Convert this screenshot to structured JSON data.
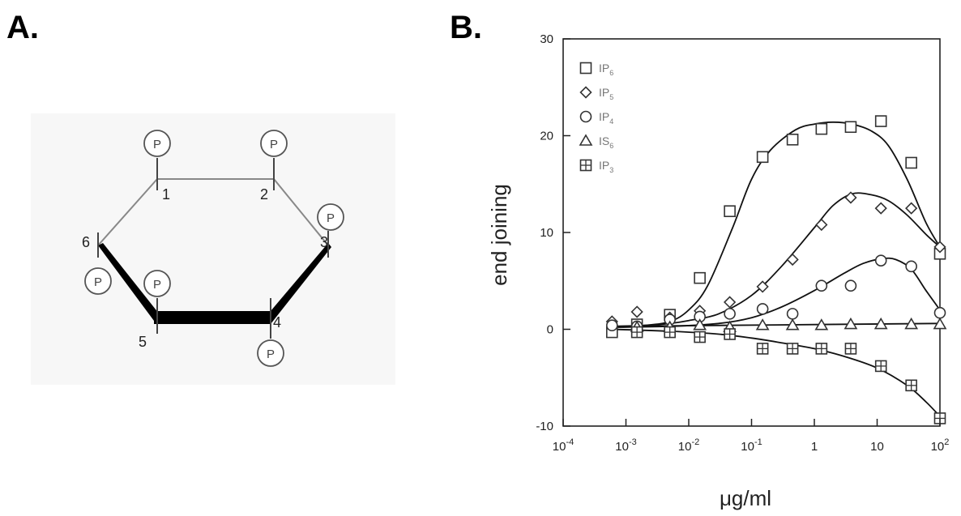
{
  "panels": {
    "a_label": "A.",
    "b_label": "B."
  },
  "diagram": {
    "phosphate_label": "P",
    "positions": [
      "1",
      "2",
      "3",
      "4",
      "5",
      "6"
    ]
  },
  "chart_data": {
    "type": "scatter",
    "xscale": "log",
    "xlim": [
      0.0001,
      100
    ],
    "ylim": [
      -10,
      30
    ],
    "xlabel": "μg/ml",
    "ylabel": "end joining",
    "xticks": [
      0.0001,
      0.001,
      0.01,
      0.1,
      1,
      10,
      100
    ],
    "xtick_labels": [
      {
        "base": "10",
        "exp": "-4"
      },
      {
        "base": "10",
        "exp": "-3"
      },
      {
        "base": "10",
        "exp": "-2"
      },
      {
        "base": "10",
        "exp": "-1"
      },
      {
        "base": "1",
        "exp": ""
      },
      {
        "base": "10",
        "exp": ""
      },
      {
        "base": "10",
        "exp": "2"
      }
    ],
    "yticks": [
      -10,
      0,
      10,
      20,
      30
    ],
    "ytick_labels": [
      "-10",
      "0",
      "10",
      "20",
      "30"
    ],
    "legend_position": "top-left",
    "series": [
      {
        "name": "IP6",
        "name_base": "IP",
        "name_sub": "6",
        "marker": "square",
        "x": [
          0.0006,
          0.0015,
          0.005,
          0.015,
          0.045,
          0.15,
          0.45,
          1.3,
          3.8,
          11.5,
          35,
          100
        ],
        "y": [
          -0.3,
          0.5,
          1.5,
          5.3,
          12.2,
          17.8,
          19.6,
          20.7,
          20.9,
          21.5,
          17.2,
          7.8
        ],
        "curve_x": [
          0.0006,
          0.002,
          0.005,
          0.01,
          0.02,
          0.05,
          0.1,
          0.2,
          0.5,
          1,
          2,
          4,
          8,
          15,
          30,
          60,
          100
        ],
        "curve_y": [
          0.2,
          0.4,
          0.8,
          2,
          4.5,
          10.5,
          15.5,
          18.5,
          20.6,
          21.2,
          21.4,
          21.2,
          20.5,
          19,
          15.5,
          11,
          8.5
        ]
      },
      {
        "name": "IP5",
        "name_base": "IP",
        "name_sub": "5",
        "marker": "diamond",
        "x": [
          0.0006,
          0.0015,
          0.005,
          0.015,
          0.045,
          0.15,
          0.45,
          1.3,
          3.8,
          11.5,
          35,
          100
        ],
        "y": [
          0.8,
          1.8,
          1.2,
          1.9,
          2.8,
          4.4,
          7.2,
          10.8,
          13.6,
          12.5,
          12.5,
          8.5
        ],
        "curve_x": [
          0.0006,
          0.002,
          0.005,
          0.01,
          0.03,
          0.1,
          0.3,
          1,
          2,
          4,
          8,
          15,
          30,
          60,
          100
        ],
        "curve_y": [
          0.3,
          0.4,
          0.6,
          0.9,
          1.6,
          3.5,
          6.5,
          10.5,
          12.8,
          14,
          13.9,
          13.3,
          11.8,
          9.8,
          8.5
        ]
      },
      {
        "name": "IP4",
        "name_base": "IP",
        "name_sub": "4",
        "marker": "circle",
        "x": [
          0.0006,
          0.0015,
          0.005,
          0.015,
          0.045,
          0.15,
          0.45,
          1.3,
          3.8,
          11.5,
          35,
          100
        ],
        "y": [
          0.4,
          0.3,
          1.0,
          1.3,
          1.6,
          2.1,
          1.6,
          4.5,
          4.5,
          7.1,
          6.5,
          1.7
        ],
        "curve_x": [
          0.0006,
          0.005,
          0.03,
          0.1,
          0.3,
          1,
          3,
          6,
          12,
          20,
          35,
          60,
          100
        ],
        "curve_y": [
          0.2,
          0.3,
          0.6,
          1.2,
          2.3,
          4,
          5.8,
          6.8,
          7.3,
          7.2,
          6.2,
          4,
          2
        ]
      },
      {
        "name": "IS6",
        "name_base": "IS",
        "name_sub": "6",
        "marker": "triangle",
        "x": [
          0.0015,
          0.005,
          0.015,
          0.045,
          0.15,
          0.45,
          1.3,
          3.8,
          11.5,
          35,
          100
        ],
        "y": [
          0.2,
          0.2,
          0.4,
          0.2,
          0.4,
          0.4,
          0.4,
          0.5,
          0.5,
          0.5,
          0.5
        ],
        "curve_x": [
          0.0006,
          100
        ],
        "curve_y": [
          0.3,
          0.6
        ]
      },
      {
        "name": "IP3",
        "name_base": "IP",
        "name_sub": "3",
        "marker": "squareplus",
        "x": [
          0.0015,
          0.005,
          0.015,
          0.045,
          0.15,
          0.45,
          1.3,
          3.8,
          11.5,
          35,
          100
        ],
        "y": [
          -0.3,
          -0.3,
          -0.8,
          -0.5,
          -2.0,
          -2.0,
          -2.0,
          -2.0,
          -3.8,
          -5.8,
          -9.2
        ],
        "curve_x": [
          0.0006,
          0.005,
          0.03,
          0.1,
          0.3,
          1,
          3,
          10,
          30,
          60,
          100
        ],
        "curve_y": [
          0,
          -0.2,
          -0.5,
          -0.9,
          -1.4,
          -2,
          -2.8,
          -4,
          -5.8,
          -7.5,
          -9
        ]
      }
    ]
  }
}
